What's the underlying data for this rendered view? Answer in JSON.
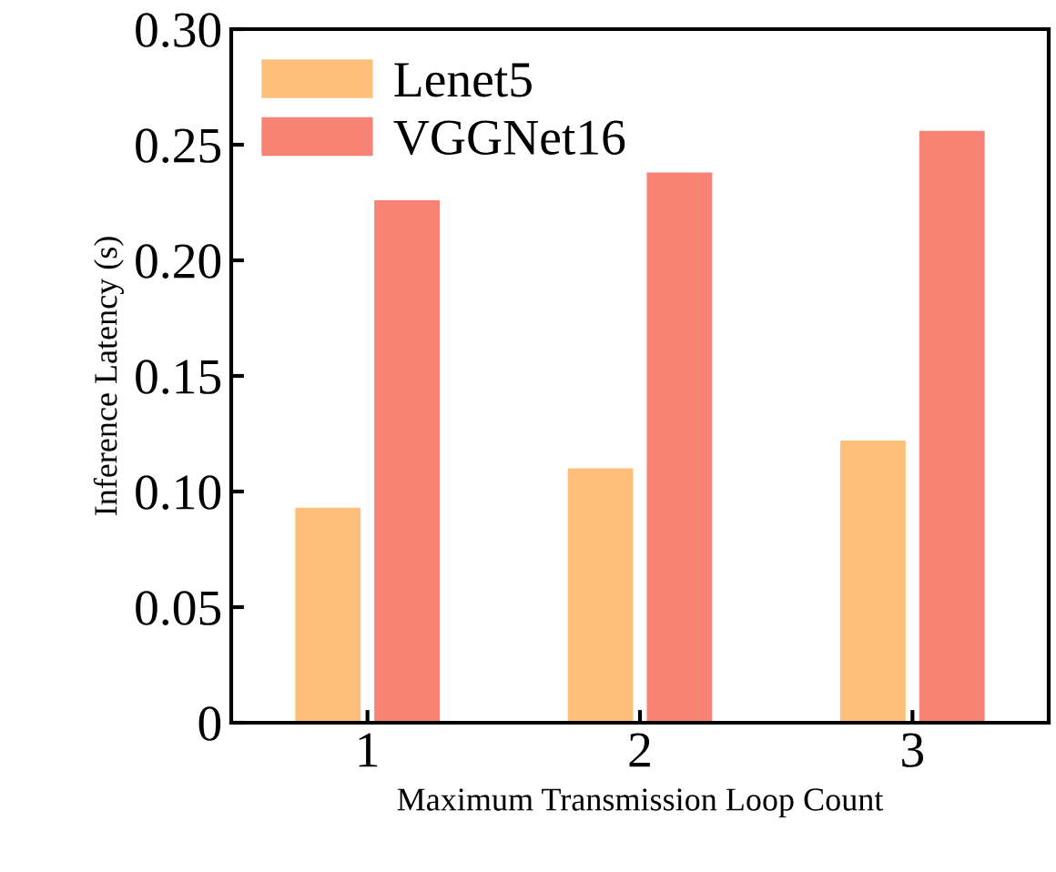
{
  "chart_data": {
    "type": "bar",
    "xlabel": "Maximum Transmission Loop Count",
    "ylabel": "Inference Latency (s)",
    "categories": [
      "1",
      "2",
      "3"
    ],
    "series": [
      {
        "name": "Lenet5",
        "color": "#fdbf7a",
        "values": [
          0.093,
          0.11,
          0.122
        ]
      },
      {
        "name": "VGGNet16",
        "color": "#f88273",
        "values": [
          0.226,
          0.238,
          0.256
        ]
      }
    ],
    "ylim": [
      0,
      0.3
    ],
    "yticks": [
      {
        "value": 0,
        "label": "0"
      },
      {
        "value": 0.05,
        "label": "0.05"
      },
      {
        "value": 0.1,
        "label": "0.10"
      },
      {
        "value": 0.15,
        "label": "0.15"
      },
      {
        "value": 0.2,
        "label": "0.20"
      },
      {
        "value": 0.25,
        "label": "0.25"
      },
      {
        "value": 0.3,
        "label": "0.30"
      }
    ],
    "grid": false,
    "legend": "top left"
  }
}
